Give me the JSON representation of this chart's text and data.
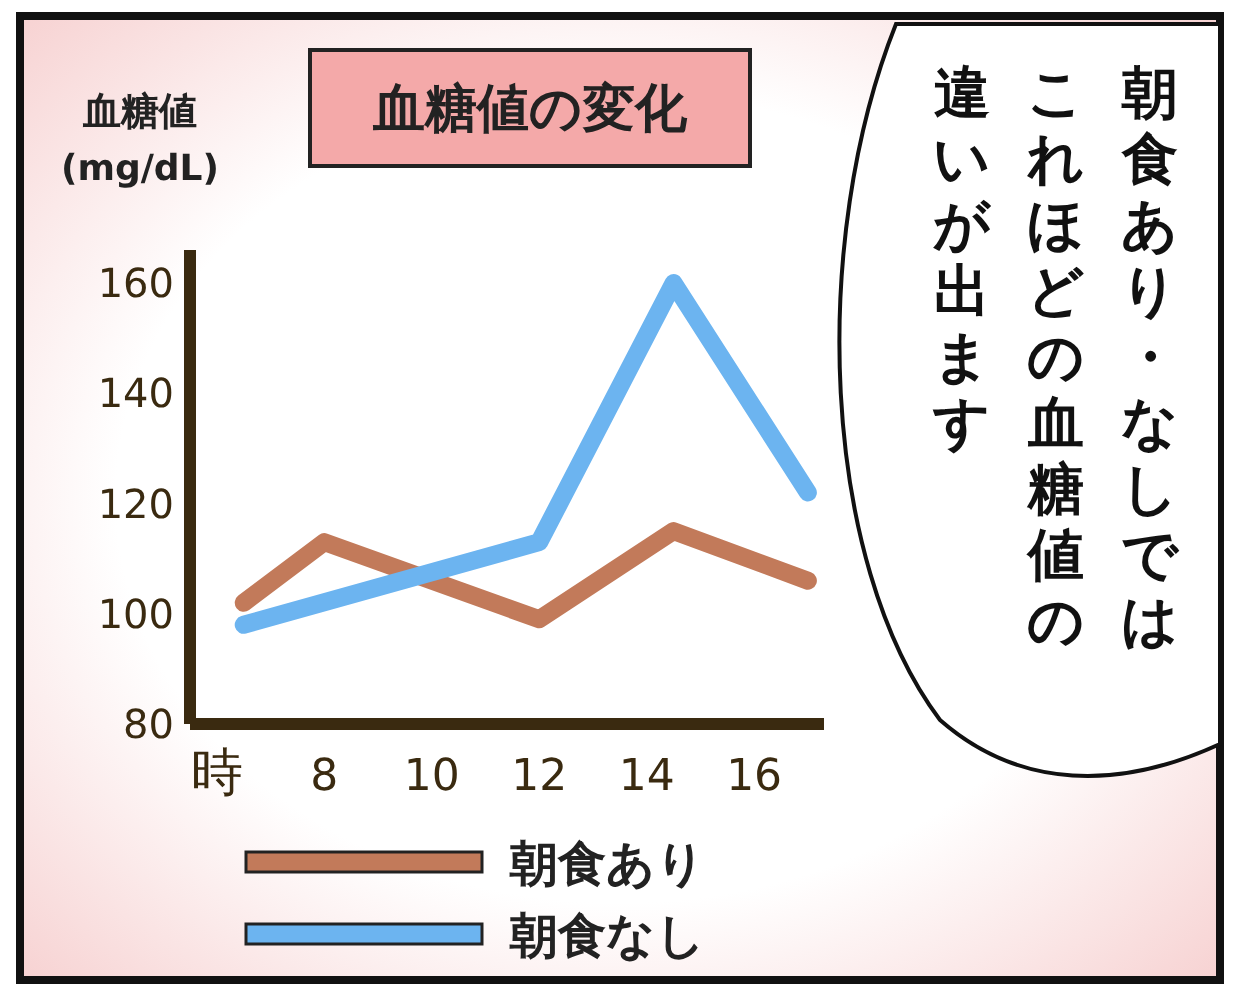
{
  "chart_data": {
    "type": "line",
    "title": "血糖値の変化",
    "ylabel": "血糖値\n(mg/dL)",
    "xlim": [
      5.5,
      17.3
    ],
    "ylim": [
      80,
      166
    ],
    "xticks": [
      {
        "value": 6,
        "label": "時"
      },
      8,
      10,
      12,
      14,
      16
    ],
    "yticks": [
      80,
      100,
      120,
      140,
      160
    ],
    "series": [
      {
        "name": "朝食あり",
        "color": "#c27a5a",
        "x": [
          6.5,
          8,
          12,
          14.5,
          17
        ],
        "values": [
          102,
          113,
          99,
          115,
          106
        ]
      },
      {
        "name": "朝食なし",
        "color": "#6cb4f0",
        "x": [
          6.5,
          12,
          14.5,
          17
        ],
        "values": [
          98,
          113,
          160,
          122
        ]
      }
    ],
    "legend": "bottom",
    "grid": false,
    "annotations": [
      "朝食あり・なしではこれほどの血糖値の違いが出ます"
    ]
  }
}
